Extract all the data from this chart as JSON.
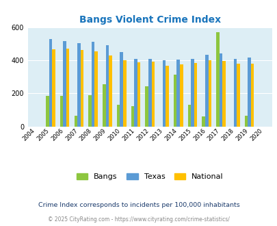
{
  "title": "Bangs Violent Crime Index",
  "years": [
    2004,
    2005,
    2006,
    2007,
    2008,
    2009,
    2010,
    2011,
    2012,
    2013,
    2014,
    2015,
    2016,
    2017,
    2018,
    2019,
    2020
  ],
  "bangs": [
    0,
    185,
    185,
    65,
    190,
    255,
    130,
    125,
    245,
    0,
    315,
    130,
    60,
    570,
    0,
    65,
    0
  ],
  "texas": [
    0,
    530,
    515,
    505,
    510,
    490,
    450,
    408,
    408,
    400,
    405,
    410,
    435,
    440,
    408,
    418,
    0
  ],
  "national": [
    0,
    468,
    470,
    464,
    452,
    428,
    402,
    388,
    390,
    368,
    376,
    382,
    400,
    396,
    380,
    380,
    0
  ],
  "bangs_color": "#8dc63f",
  "texas_color": "#5b9bd5",
  "national_color": "#ffc000",
  "bg_color": "#ddeef5",
  "ylim": [
    0,
    600
  ],
  "yticks": [
    0,
    200,
    400,
    600
  ],
  "legend_labels": [
    "Bangs",
    "Texas",
    "National"
  ],
  "footnote1": "Crime Index corresponds to incidents per 100,000 inhabitants",
  "footnote2": "© 2025 CityRating.com - https://www.cityrating.com/crime-statistics/",
  "title_color": "#1a75bc",
  "footnote1_color": "#1a3a6b",
  "footnote2_color": "#888888",
  "footnote2_link_color": "#2a7cc7"
}
